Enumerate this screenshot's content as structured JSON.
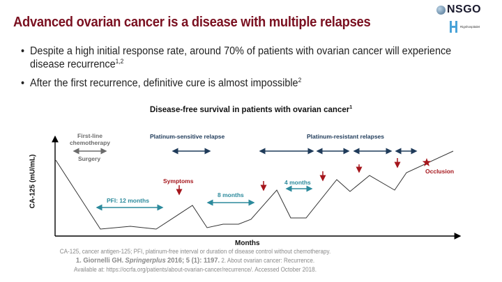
{
  "slide": {
    "title": "Advanced ovarian cancer is a disease with multiple relapses",
    "logos": {
      "nsgo": "NSGO",
      "hospital": "Rigshospitalet"
    },
    "bullets": [
      {
        "text": "Despite a high initial response rate, around 70% of patients with ovarian cancer will experience disease recurrence",
        "sup": "1,2"
      },
      {
        "text": "After the first recurrence, definitive cure is almost impossible",
        "sup": "2"
      }
    ]
  },
  "diagram": {
    "title": "Disease-free survival in patients with ovarian cancer",
    "title_sup": "1",
    "y_axis_label": "CA-125 (mU/mL)",
    "x_axis_label": "Months",
    "phase_labels": {
      "first_line": "First-line chemotherapy",
      "first_line_line1": "First-line",
      "first_line_line2": "chemotherapy",
      "surgery": "Surgery",
      "platinum_sensitive": "Platinum-sensitive relapse",
      "platinum_resistant": "Platinum-resistant relapses"
    },
    "interval_labels": {
      "pfi": "PFI: 12 months",
      "eight": "8 months",
      "four": "4 months"
    },
    "event_labels": {
      "symptoms": "Symptoms",
      "occlusion": "Occlusion"
    },
    "colors": {
      "gray": "#6b6b6b",
      "navy": "#1f3b5a",
      "teal": "#2c8a9c",
      "red": "#a5161c",
      "line": "#333333"
    }
  },
  "footnotes": {
    "abbreviations": "CA-125, cancer antigen-125; PFI, platinum-free interval or duration of disease control without chemotherapy.",
    "ref1_bold": "1. Giornelli GH.",
    "ref1_journal": "Springerplus",
    "ref1_rest": "2016; 5 (1): 1197.",
    "ref2": "2. About ovarian cancer: Recurrence.",
    "ref2_line2": "Available at: https://ocrfa.org/patients/about-ovarian-cancer/recurrence/. Accessed October 2018."
  }
}
